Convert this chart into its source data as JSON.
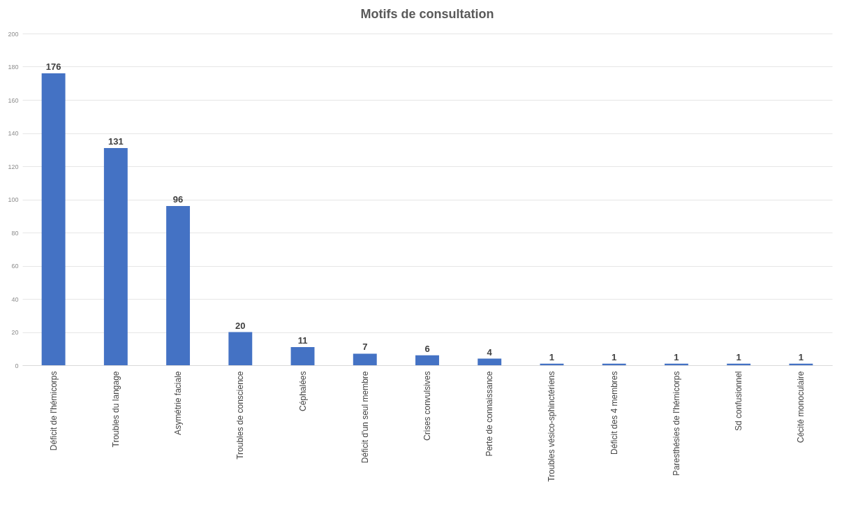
{
  "chart_data": {
    "type": "bar",
    "title": "Motifs de consultation",
    "categories": [
      "Déficit de l'hémicorps",
      "Troubles du langage",
      "Asymétrie faciale",
      "Troubles de conscience",
      "Céphalées",
      "Déficit d'un seul membre",
      "Crises convulsives",
      "Perte de connaissance",
      "Troubles vésico-sphinctériens",
      "Déficit des 4 membres",
      "Paresthésies de l'hémicorps",
      "Sd confusionnel",
      "Cécité monoculaire"
    ],
    "values": [
      176,
      131,
      96,
      20,
      11,
      7,
      6,
      4,
      1,
      1,
      1,
      1,
      1
    ],
    "color": "#4472c4",
    "ylim": [
      0,
      200
    ],
    "yticks": [
      0,
      20,
      40,
      60,
      80,
      100,
      120,
      140,
      160,
      180,
      200
    ],
    "grid": "y",
    "data_labels": true
  }
}
